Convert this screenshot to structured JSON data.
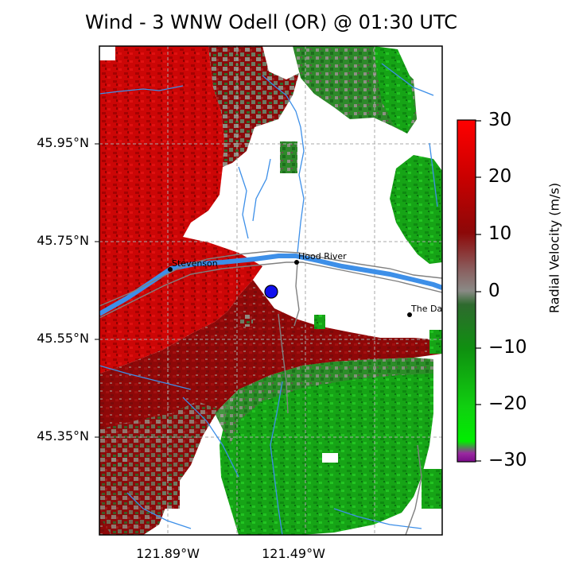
{
  "title": "Wind - 3 WNW Odell (OR) @ 01:30 UTC",
  "map": {
    "lat_labels": [
      "45.95°N",
      "45.75°N",
      "45.55°N",
      "45.35°N"
    ],
    "lon_labels": [
      "121.89°W",
      "121.49°W"
    ],
    "cities": [
      {
        "name": "Stevenson"
      },
      {
        "name": "Hood River"
      },
      {
        "name": "The Dall"
      }
    ],
    "radar_site_marker": "blue-circle",
    "colors": {
      "outbound_red": "#cc0000",
      "inbound_green": "#1a9e1a",
      "near_zero_gray": "#8a8a7a",
      "rivers": "#3d8fe8",
      "roads": "#808080",
      "site": "#1010ee"
    }
  },
  "colorbar": {
    "label": "Radial Velocity (m/s)",
    "ticks": [
      "30",
      "20",
      "10",
      "0",
      "−10",
      "−20",
      "−30"
    ],
    "min": -30,
    "max": 30
  }
}
